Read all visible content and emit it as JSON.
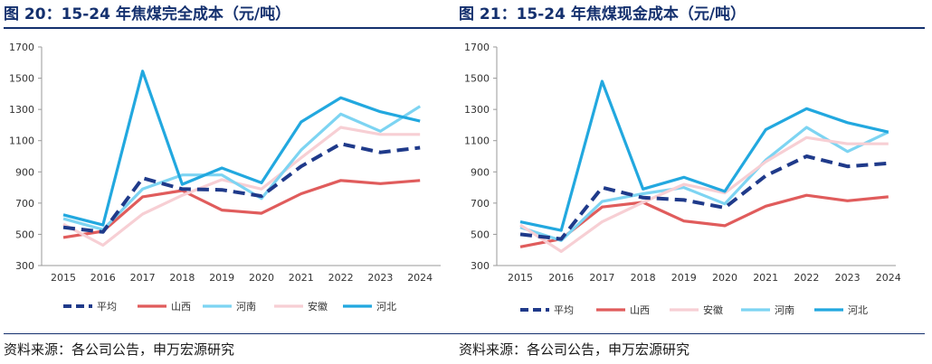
{
  "colors": {
    "title": "#14306e",
    "平均": "#1f3a8a",
    "山西": "#e05c5c",
    "安徽": "#f7cfd4",
    "河南": "#7dd4f2",
    "河北": "#22a8df"
  },
  "chart_data": [
    {
      "type": "line",
      "title": "图 20：15-24 年焦煤完全成本（元/吨）",
      "source": "资料来源：各公司公告，申万宏源研究",
      "categories": [
        "2015",
        "2016",
        "2017",
        "2018",
        "2019",
        "2020",
        "2021",
        "2022",
        "2023",
        "2024"
      ],
      "ylim": [
        300,
        1700
      ],
      "yticks": [
        300,
        500,
        700,
        900,
        1100,
        1300,
        1500,
        1700
      ],
      "series": [
        {
          "name": "山西",
          "values": [
            480,
            520,
            740,
            780,
            655,
            635,
            760,
            845,
            825,
            845
          ]
        },
        {
          "name": "安徽",
          "values": [
            565,
            430,
            630,
            750,
            850,
            790,
            990,
            1185,
            1140,
            1140
          ]
        },
        {
          "name": "河南",
          "values": [
            600,
            530,
            790,
            880,
            880,
            730,
            1040,
            1270,
            1160,
            1320
          ]
        },
        {
          "name": "河北",
          "values": [
            625,
            560,
            1545,
            820,
            925,
            830,
            1220,
            1375,
            1285,
            1225
          ]
        },
        {
          "name": "平均",
          "values": [
            545,
            515,
            860,
            790,
            785,
            745,
            935,
            1080,
            1025,
            1055
          ]
        }
      ],
      "legend": [
        "平均",
        "山西",
        "河南",
        "安徽",
        "河北"
      ]
    },
    {
      "type": "line",
      "title": "图 21：15-24 年焦煤现金成本（元/吨）",
      "source": "资料来源：各公司公告，申万宏源研究",
      "categories": [
        "2015",
        "2016",
        "2017",
        "2018",
        "2019",
        "2020",
        "2021",
        "2022",
        "2023",
        "2024"
      ],
      "ylim": [
        300,
        1700
      ],
      "yticks": [
        300,
        500,
        700,
        900,
        1100,
        1300,
        1500,
        1700
      ],
      "series": [
        {
          "name": "山西",
          "values": [
            420,
            470,
            675,
            705,
            585,
            555,
            680,
            750,
            715,
            740
          ]
        },
        {
          "name": "河南",
          "values": [
            545,
            460,
            710,
            760,
            800,
            695,
            975,
            1185,
            1030,
            1155
          ]
        },
        {
          "name": "安徽",
          "values": [
            560,
            390,
            580,
            705,
            820,
            765,
            965,
            1120,
            1080,
            1080
          ]
        },
        {
          "name": "河北",
          "values": [
            580,
            525,
            1480,
            790,
            865,
            775,
            1170,
            1305,
            1215,
            1155
          ]
        },
        {
          "name": "平均",
          "values": [
            500,
            470,
            800,
            735,
            720,
            670,
            875,
            1000,
            935,
            955
          ]
        }
      ],
      "legend": [
        "平均",
        "山西",
        "安徽",
        "河南",
        "河北"
      ]
    }
  ]
}
